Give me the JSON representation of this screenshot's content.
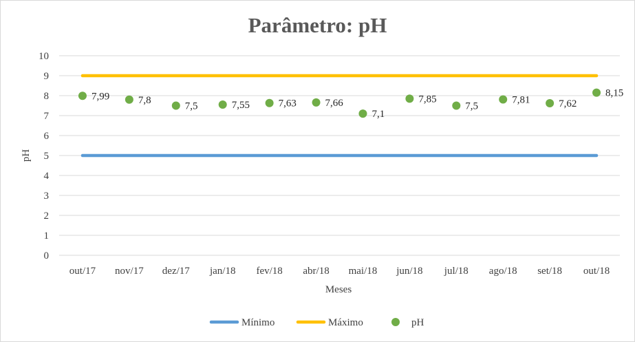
{
  "chart_data": {
    "type": "line",
    "title": "Parâmetro: pH",
    "xlabel": "Meses",
    "ylabel": "pH",
    "categories": [
      "out/17",
      "nov/17",
      "dez/17",
      "jan/18",
      "fev/18",
      "abr/18",
      "mai/18",
      "jun/18",
      "jul/18",
      "ago/18",
      "set/18",
      "out/18"
    ],
    "ylim": [
      0,
      10
    ],
    "yticks": [
      "0",
      "1",
      "2",
      "3",
      "4",
      "5",
      "6",
      "7",
      "8",
      "9",
      "10"
    ],
    "grid": true,
    "legend_position": "bottom",
    "series": [
      {
        "name": "Mínimo",
        "kind": "line",
        "color": "#5b9bd5",
        "values": [
          5,
          5,
          5,
          5,
          5,
          5,
          5,
          5,
          5,
          5,
          5,
          5
        ]
      },
      {
        "name": "Máximo",
        "kind": "line",
        "color": "#ffc000",
        "values": [
          9,
          9,
          9,
          9,
          9,
          9,
          9,
          9,
          9,
          9,
          9,
          9
        ]
      },
      {
        "name": "pH",
        "kind": "marker",
        "color": "#70ad47",
        "values": [
          7.99,
          7.8,
          7.5,
          7.55,
          7.63,
          7.66,
          7.1,
          7.85,
          7.5,
          7.81,
          7.62,
          8.15
        ],
        "labels": [
          "7,99",
          "7,8",
          "7,5",
          "7,55",
          "7,63",
          "7,66",
          "7,1",
          "7,85",
          "7,5",
          "7,81",
          "7,62",
          "8,15"
        ]
      }
    ]
  }
}
